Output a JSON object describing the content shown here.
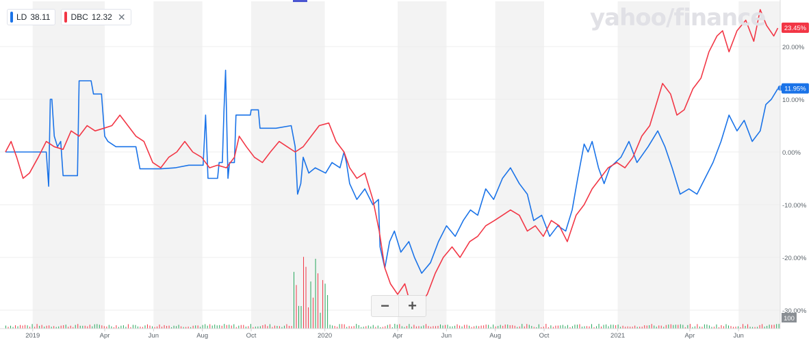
{
  "legend": [
    {
      "symbol": "LD",
      "price": "38.11",
      "color": "#1a73e8",
      "closable": false
    },
    {
      "symbol": "DBC",
      "price": "12.32",
      "color": "#f23645",
      "closable": true
    }
  ],
  "watermark": "yahoo/finance",
  "zoom": {
    "minus": "−",
    "plus": "+"
  },
  "colors": {
    "ld": "#1a73e8",
    "dbc": "#f23645",
    "vol_up": "#26a65b",
    "vol_down": "#f23645",
    "band": "#f3f3f3",
    "grid": "#ececec",
    "axis_text": "#5b636a"
  },
  "chart_data": {
    "type": "line",
    "x_axis": {
      "start": "2018-11-28",
      "end": "2021-07-23",
      "tick_labels": [
        {
          "label": "2019",
          "date": "2019-01-01"
        },
        {
          "label": "Apr",
          "date": "2019-04-01"
        },
        {
          "label": "Jun",
          "date": "2019-06-01"
        },
        {
          "label": "Aug",
          "date": "2019-08-01"
        },
        {
          "label": "Oct",
          "date": "2019-10-01"
        },
        {
          "label": "2020",
          "date": "2020-01-01"
        },
        {
          "label": "Apr",
          "date": "2020-04-01"
        },
        {
          "label": "Jun",
          "date": "2020-06-01"
        },
        {
          "label": "Aug",
          "date": "2020-08-01"
        },
        {
          "label": "Oct",
          "date": "2020-10-01"
        },
        {
          "label": "2021",
          "date": "2021-01-01"
        },
        {
          "label": "Apr",
          "date": "2021-04-01"
        },
        {
          "label": "Jun",
          "date": "2021-06-01"
        }
      ],
      "shaded_bands": [
        [
          "2019-01-01",
          "2019-04-01"
        ],
        [
          "2019-06-01",
          "2019-08-01"
        ],
        [
          "2019-10-01",
          "2020-01-01"
        ],
        [
          "2020-04-01",
          "2020-06-01"
        ],
        [
          "2020-08-01",
          "2020-10-01"
        ],
        [
          "2021-01-01",
          "2021-04-01"
        ],
        [
          "2021-06-01",
          "2021-07-23"
        ]
      ]
    },
    "y_axis": {
      "unit": "%",
      "ylim": [
        -31,
        28
      ],
      "tick_labels": [
        {
          "label": "20.00%",
          "value": 20
        },
        {
          "label": "10.00%",
          "value": 10
        },
        {
          "label": "0.00%",
          "value": 0
        },
        {
          "label": "-10.00%",
          "value": -10
        },
        {
          "label": "-20.00%",
          "value": -20
        },
        {
          "label": "-30.00%",
          "value": -30
        }
      ]
    },
    "volume_label": "100",
    "series": [
      {
        "name": "LD",
        "color": "#1a73e8",
        "last_label": "11.95%",
        "points": [
          [
            "2018-11-28",
            0
          ],
          [
            "2018-12-20",
            0
          ],
          [
            "2019-01-10",
            0
          ],
          [
            "2019-01-18",
            0
          ],
          [
            "2019-01-21",
            -6.5
          ],
          [
            "2019-01-23",
            10
          ],
          [
            "2019-01-25",
            10
          ],
          [
            "2019-01-28",
            3
          ],
          [
            "2019-02-01",
            1
          ],
          [
            "2019-02-05",
            2
          ],
          [
            "2019-02-08",
            -4.5
          ],
          [
            "2019-02-20",
            -4.5
          ],
          [
            "2019-02-26",
            -4.5
          ],
          [
            "2019-02-28",
            13.5
          ],
          [
            "2019-03-15",
            13.5
          ],
          [
            "2019-03-18",
            11
          ],
          [
            "2019-03-28",
            11
          ],
          [
            "2019-04-01",
            3
          ],
          [
            "2019-04-05",
            2
          ],
          [
            "2019-04-15",
            1
          ],
          [
            "2019-05-10",
            1
          ],
          [
            "2019-05-15",
            -3.2
          ],
          [
            "2019-06-10",
            -3.2
          ],
          [
            "2019-06-28",
            -3
          ],
          [
            "2019-07-15",
            -2.5
          ],
          [
            "2019-08-02",
            -2.5
          ],
          [
            "2019-08-05",
            7
          ],
          [
            "2019-08-08",
            -5
          ],
          [
            "2019-08-20",
            -5
          ],
          [
            "2019-08-22",
            -2
          ],
          [
            "2019-08-26",
            -2
          ],
          [
            "2019-08-28",
            8
          ],
          [
            "2019-08-30",
            15.5
          ],
          [
            "2019-09-02",
            -5
          ],
          [
            "2019-09-04",
            -2
          ],
          [
            "2019-09-10",
            -2
          ],
          [
            "2019-09-12",
            7
          ],
          [
            "2019-09-30",
            7
          ],
          [
            "2019-10-01",
            8
          ],
          [
            "2019-10-10",
            8
          ],
          [
            "2019-10-12",
            4.5
          ],
          [
            "2019-11-01",
            4.5
          ],
          [
            "2019-11-20",
            5
          ],
          [
            "2019-11-25",
            1
          ],
          [
            "2019-11-28",
            -8
          ],
          [
            "2019-12-02",
            -6
          ],
          [
            "2019-12-05",
            -1
          ],
          [
            "2019-12-12",
            -4
          ],
          [
            "2019-12-20",
            -3
          ],
          [
            "2020-01-02",
            -4
          ],
          [
            "2020-01-10",
            -2
          ],
          [
            "2020-01-20",
            -3
          ],
          [
            "2020-01-25",
            0
          ],
          [
            "2020-01-28",
            -2
          ],
          [
            "2020-02-01",
            -6
          ],
          [
            "2020-02-10",
            -9
          ],
          [
            "2020-02-20",
            -7
          ],
          [
            "2020-03-01",
            -10
          ],
          [
            "2020-03-08",
            -9
          ],
          [
            "2020-03-10",
            -18
          ],
          [
            "2020-03-16",
            -22
          ],
          [
            "2020-03-22",
            -17
          ],
          [
            "2020-03-28",
            -15
          ],
          [
            "2020-04-05",
            -19
          ],
          [
            "2020-04-15",
            -17
          ],
          [
            "2020-04-22",
            -20
          ],
          [
            "2020-05-01",
            -23
          ],
          [
            "2020-05-12",
            -21
          ],
          [
            "2020-05-22",
            -17
          ],
          [
            "2020-06-01",
            -14
          ],
          [
            "2020-06-12",
            -16
          ],
          [
            "2020-06-22",
            -13
          ],
          [
            "2020-07-01",
            -11
          ],
          [
            "2020-07-10",
            -12
          ],
          [
            "2020-07-20",
            -7
          ],
          [
            "2020-07-30",
            -9
          ],
          [
            "2020-08-10",
            -5
          ],
          [
            "2020-08-20",
            -3
          ],
          [
            "2020-08-31",
            -6
          ],
          [
            "2020-09-10",
            -8
          ],
          [
            "2020-09-18",
            -13
          ],
          [
            "2020-09-28",
            -12
          ],
          [
            "2020-10-08",
            -16
          ],
          [
            "2020-10-18",
            -14
          ],
          [
            "2020-10-28",
            -15
          ],
          [
            "2020-11-05",
            -11
          ],
          [
            "2020-11-12",
            -5
          ],
          [
            "2020-11-20",
            1.5
          ],
          [
            "2020-11-25",
            0
          ],
          [
            "2020-11-30",
            2
          ],
          [
            "2020-12-08",
            -3
          ],
          [
            "2020-12-15",
            -6
          ],
          [
            "2020-12-22",
            -3
          ],
          [
            "2021-01-05",
            -1
          ],
          [
            "2021-01-15",
            2
          ],
          [
            "2021-01-25",
            -2
          ],
          [
            "2021-02-08",
            1
          ],
          [
            "2021-02-20",
            4
          ],
          [
            "2021-03-01",
            1
          ],
          [
            "2021-03-10",
            -3
          ],
          [
            "2021-03-20",
            -8
          ],
          [
            "2021-03-31",
            -7
          ],
          [
            "2021-04-10",
            -8
          ],
          [
            "2021-04-20",
            -5
          ],
          [
            "2021-04-30",
            -2
          ],
          [
            "2021-05-10",
            2
          ],
          [
            "2021-05-20",
            7
          ],
          [
            "2021-05-30",
            4
          ],
          [
            "2021-06-08",
            6
          ],
          [
            "2021-06-18",
            2
          ],
          [
            "2021-06-28",
            4
          ],
          [
            "2021-07-05",
            9
          ],
          [
            "2021-07-12",
            10
          ],
          [
            "2021-07-20",
            12
          ]
        ]
      },
      {
        "name": "DBC",
        "color": "#f23645",
        "last_label": "23.45%",
        "points": [
          [
            "2018-11-28",
            0
          ],
          [
            "2018-12-05",
            2
          ],
          [
            "2018-12-12",
            -1
          ],
          [
            "2018-12-20",
            -5
          ],
          [
            "2018-12-28",
            -4
          ],
          [
            "2019-01-08",
            -1
          ],
          [
            "2019-01-18",
            2
          ],
          [
            "2019-01-28",
            1
          ],
          [
            "2019-02-08",
            0.5
          ],
          [
            "2019-02-18",
            4
          ],
          [
            "2019-02-28",
            3
          ],
          [
            "2019-03-10",
            5
          ],
          [
            "2019-03-20",
            4
          ],
          [
            "2019-03-31",
            4.5
          ],
          [
            "2019-04-10",
            5
          ],
          [
            "2019-04-20",
            7
          ],
          [
            "2019-04-30",
            5
          ],
          [
            "2019-05-10",
            3
          ],
          [
            "2019-05-20",
            2
          ],
          [
            "2019-05-31",
            -2
          ],
          [
            "2019-06-10",
            -3
          ],
          [
            "2019-06-20",
            -1
          ],
          [
            "2019-06-30",
            0
          ],
          [
            "2019-07-10",
            2
          ],
          [
            "2019-07-20",
            0
          ],
          [
            "2019-07-31",
            -1
          ],
          [
            "2019-08-10",
            -3
          ],
          [
            "2019-08-20",
            -2.5
          ],
          [
            "2019-08-31",
            -3
          ],
          [
            "2019-09-10",
            -1
          ],
          [
            "2019-09-16",
            3
          ],
          [
            "2019-09-25",
            1
          ],
          [
            "2019-10-05",
            -1
          ],
          [
            "2019-10-15",
            -2
          ],
          [
            "2019-10-25",
            0
          ],
          [
            "2019-11-05",
            2
          ],
          [
            "2019-11-15",
            1
          ],
          [
            "2019-11-25",
            0
          ],
          [
            "2019-12-05",
            1
          ],
          [
            "2019-12-15",
            3
          ],
          [
            "2019-12-25",
            5
          ],
          [
            "2020-01-06",
            5.5
          ],
          [
            "2020-01-15",
            2
          ],
          [
            "2020-01-25",
            0
          ],
          [
            "2020-02-01",
            -3
          ],
          [
            "2020-02-10",
            -5
          ],
          [
            "2020-02-20",
            -4
          ],
          [
            "2020-03-01",
            -9
          ],
          [
            "2020-03-09",
            -15
          ],
          [
            "2020-03-16",
            -22
          ],
          [
            "2020-03-23",
            -25
          ],
          [
            "2020-04-01",
            -27
          ],
          [
            "2020-04-10",
            -25
          ],
          [
            "2020-04-21",
            -31
          ],
          [
            "2020-04-28",
            -29
          ],
          [
            "2020-05-08",
            -27
          ],
          [
            "2020-05-18",
            -23
          ],
          [
            "2020-05-28",
            -20
          ],
          [
            "2020-06-08",
            -18
          ],
          [
            "2020-06-18",
            -20
          ],
          [
            "2020-06-30",
            -17
          ],
          [
            "2020-07-10",
            -16
          ],
          [
            "2020-07-20",
            -14
          ],
          [
            "2020-07-31",
            -13
          ],
          [
            "2020-08-10",
            -12
          ],
          [
            "2020-08-20",
            -11
          ],
          [
            "2020-08-31",
            -12
          ],
          [
            "2020-09-10",
            -15
          ],
          [
            "2020-09-20",
            -14
          ],
          [
            "2020-09-30",
            -16
          ],
          [
            "2020-10-10",
            -13
          ],
          [
            "2020-10-20",
            -14
          ],
          [
            "2020-10-30",
            -17
          ],
          [
            "2020-11-10",
            -12
          ],
          [
            "2020-11-20",
            -10
          ],
          [
            "2020-11-30",
            -7
          ],
          [
            "2020-12-10",
            -5
          ],
          [
            "2020-12-20",
            -3
          ],
          [
            "2020-12-31",
            -2
          ],
          [
            "2021-01-10",
            -3
          ],
          [
            "2021-01-20",
            -1
          ],
          [
            "2021-01-31",
            3
          ],
          [
            "2021-02-10",
            5
          ],
          [
            "2021-02-20",
            10
          ],
          [
            "2021-02-26",
            13
          ],
          [
            "2021-03-08",
            11
          ],
          [
            "2021-03-16",
            7
          ],
          [
            "2021-03-25",
            8
          ],
          [
            "2021-04-05",
            12
          ],
          [
            "2021-04-15",
            14
          ],
          [
            "2021-04-25",
            19
          ],
          [
            "2021-05-05",
            22
          ],
          [
            "2021-05-12",
            23
          ],
          [
            "2021-05-20",
            19
          ],
          [
            "2021-05-30",
            23
          ],
          [
            "2021-06-10",
            25
          ],
          [
            "2021-06-20",
            21
          ],
          [
            "2021-06-28",
            27
          ],
          [
            "2021-07-06",
            24
          ],
          [
            "2021-07-15",
            22
          ],
          [
            "2021-07-20",
            23.5
          ]
        ]
      }
    ]
  }
}
